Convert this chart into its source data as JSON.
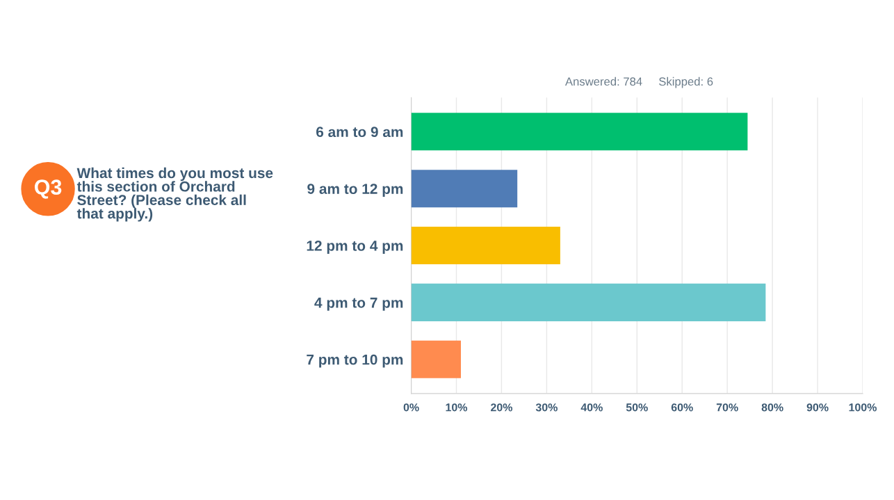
{
  "chart_data": {
    "type": "bar",
    "orientation": "horizontal",
    "title": "What times do you most use this section of Orchard Street? (Please check all that apply.)",
    "subtitle": "Answered: 784     Skipped: 6",
    "annotations": [
      "Q3"
    ],
    "categories": [
      "6 am to 9 am",
      "9 am to 12 pm",
      "12 pm to 4 pm",
      "4 pm to 7 pm",
      "7 pm to 10 pm"
    ],
    "values": [
      74.5,
      23.5,
      33,
      78.5,
      11
    ],
    "colors": [
      "#00bf6f",
      "#507cb6",
      "#f9be00",
      "#6bc8cd",
      "#ff8b4f"
    ],
    "xlim": [
      0,
      100
    ],
    "xticks": [
      {
        "value": 0,
        "label": "0%"
      },
      {
        "value": 10,
        "label": "10%"
      },
      {
        "value": 20,
        "label": "20%"
      },
      {
        "value": 30,
        "label": "30%"
      },
      {
        "value": 40,
        "label": "40%"
      },
      {
        "value": 50,
        "label": "50%"
      },
      {
        "value": 60,
        "label": "60%"
      },
      {
        "value": 70,
        "label": "70%"
      },
      {
        "value": 80,
        "label": "80%"
      },
      {
        "value": 90,
        "label": "90%"
      },
      {
        "value": 100,
        "label": "100%"
      }
    ],
    "grid": "x"
  }
}
